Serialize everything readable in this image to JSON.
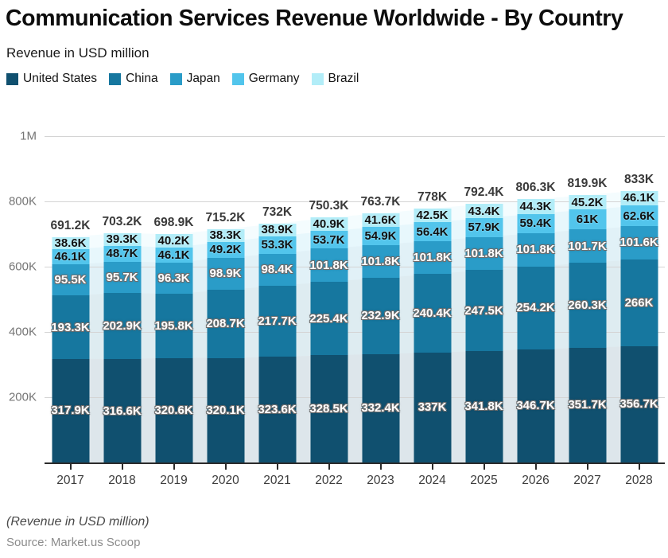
{
  "header": {
    "title": "Communication Services Revenue Worldwide - By Country",
    "subtitle": "Revenue in USD million"
  },
  "chart_data": {
    "type": "bar",
    "stacked": true,
    "title": "Communication Services Revenue Worldwide - By Country",
    "subtitle": "Revenue in USD million",
    "categories": [
      "2017",
      "2018",
      "2019",
      "2020",
      "2021",
      "2022",
      "2023",
      "2024",
      "2025",
      "2026",
      "2027",
      "2028"
    ],
    "value_unit": "K",
    "series": [
      {
        "name": "United States",
        "color": "#10506f",
        "label_color": "#ffffff",
        "values": [
          317.9,
          316.6,
          320.6,
          320.1,
          323.6,
          328.5,
          332.4,
          337,
          341.8,
          346.7,
          351.7,
          356.7
        ]
      },
      {
        "name": "China",
        "color": "#16779f",
        "label_color": "#ffffff",
        "values": [
          193.3,
          202.9,
          195.8,
          208.7,
          217.7,
          225.4,
          232.9,
          240.4,
          247.5,
          254.2,
          260.3,
          266
        ]
      },
      {
        "name": "Japan",
        "color": "#2a9cc8",
        "label_color": "#ffffff",
        "values": [
          95.5,
          95.7,
          96.3,
          98.9,
          98.4,
          101.8,
          101.8,
          101.8,
          101.8,
          101.8,
          101.7,
          101.6
        ]
      },
      {
        "name": "Germany",
        "color": "#52c5ec",
        "label_color": "#111111",
        "values": [
          46.1,
          48.7,
          46.1,
          49.2,
          53.3,
          53.7,
          54.9,
          56.4,
          57.9,
          59.4,
          61,
          62.6
        ]
      },
      {
        "name": "Brazil",
        "color": "#b2edf8",
        "label_color": "#111111",
        "values": [
          38.6,
          39.3,
          40.2,
          38.3,
          38.9,
          40.9,
          41.6,
          42.5,
          43.4,
          44.3,
          45.2,
          46.1
        ]
      }
    ],
    "totals": [
      691.2,
      703.2,
      698.9,
      715.2,
      732,
      750.3,
      763.7,
      778,
      792.4,
      806.3,
      819.9,
      833
    ],
    "y_axis": {
      "ticks": [
        "200K",
        "400K",
        "600K",
        "800K",
        "1M"
      ],
      "max_k": 1000,
      "grid": "horizontal"
    },
    "legend_position": "top-left",
    "background_area_opacity": 0.14
  },
  "footer": {
    "footnote": "(Revenue in USD million)",
    "source": "Source: Market.us Scoop"
  }
}
